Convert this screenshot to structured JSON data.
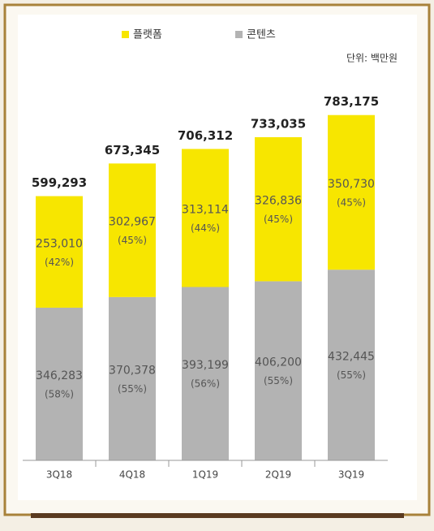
{
  "chart_data": {
    "type": "stacked-bar",
    "unit_label": "단위: 백만원",
    "categories": [
      "3Q18",
      "4Q18",
      "1Q19",
      "2Q19",
      "3Q19"
    ],
    "series": [
      {
        "name": "콘텐츠",
        "color": "#b3b3b3",
        "values": [
          346283,
          370378,
          393199,
          406200,
          432445
        ],
        "value_labels": [
          "346,283",
          "370,378",
          "393,199",
          "406,200",
          "432,445"
        ],
        "share_labels": [
          "(58%)",
          "(55%)",
          "(56%)",
          "(55%)",
          "(55%)"
        ]
      },
      {
        "name": "플랫폼",
        "color": "#f7e600",
        "values": [
          253010,
          302967,
          313114,
          326836,
          350730
        ],
        "value_labels": [
          "253,010",
          "302,967",
          "313,114",
          "326,836",
          "350,730"
        ],
        "share_labels": [
          "(42%)",
          "(45%)",
          "(44%)",
          "(45%)",
          "(45%)"
        ]
      }
    ],
    "totals": [
      599293,
      673345,
      706312,
      733035,
      783175
    ],
    "total_labels": [
      "599,293",
      "673,345",
      "706,312",
      "733,035",
      "783,175"
    ],
    "ylim": [
      0,
      860000
    ]
  }
}
